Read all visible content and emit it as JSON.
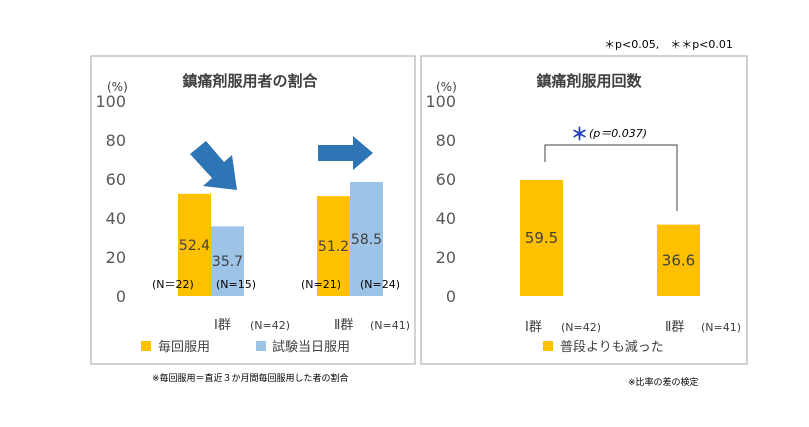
{
  "significance_note": "＊p<0.05,　＊＊p<0.01",
  "colors": {
    "yellow": "#FFC000",
    "lightblue": "#9DC3E6",
    "arrow": "#2E75B6",
    "star": "#1F3FBF",
    "frame": "#A6A6A6",
    "text": "#404040",
    "axis_text": "#595959"
  },
  "chart_data": [
    {
      "type": "bar",
      "title": "鎮痛剤服用者の割合",
      "ylabel": "(%)",
      "ylim": [
        0,
        100
      ],
      "yticks": [
        "0",
        "20",
        "40",
        "60",
        "80",
        "100"
      ],
      "categories": [
        "Ⅰ群",
        "Ⅱ群"
      ],
      "category_n": [
        "(N=42)",
        "(N=41)"
      ],
      "series": [
        {
          "name": "毎回服用",
          "values": [
            52.4,
            51.2
          ],
          "labels": [
            "52.4",
            "51.2"
          ],
          "n": [
            "(N＝22)",
            "(N=21)"
          ]
        },
        {
          "name": "試験当日服用",
          "values": [
            35.7,
            58.5
          ],
          "labels": [
            "35.7",
            "58.5"
          ],
          "n": [
            "(N=15)",
            "(N=24)"
          ]
        }
      ],
      "arrows": [
        "down-right-arrow",
        "right-arrow"
      ],
      "footnote": "※毎回服用＝直近３か月間毎回服用した者の割合"
    },
    {
      "type": "bar",
      "title": "鎮痛剤服用回数",
      "ylabel": "(%)",
      "ylim": [
        0,
        100
      ],
      "yticks": [
        "0",
        "20",
        "40",
        "60",
        "80",
        "100"
      ],
      "categories": [
        "Ⅰ群",
        "Ⅱ群"
      ],
      "category_n": [
        "(N=42)",
        "(N=41)"
      ],
      "series": [
        {
          "name": "普段よりも減った",
          "values": [
            59.5,
            36.6
          ],
          "labels": [
            "59.5",
            "36.6"
          ]
        }
      ],
      "significance": {
        "star": "＊",
        "text": "(p＝0.037)"
      },
      "footnote": "※比率の差の検定"
    }
  ]
}
